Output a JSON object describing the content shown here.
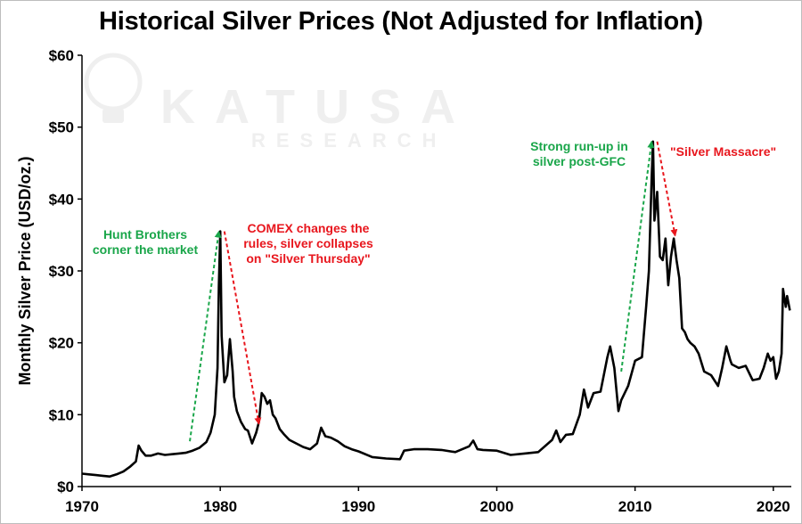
{
  "chart_data": {
    "type": "line",
    "title": "Historical Silver Prices (Not Adjusted for Inflation)",
    "ylabel": "Monthly Silver Price (USD/oz.)",
    "xlabel": "",
    "xlim": [
      1970,
      2021.3
    ],
    "ylim": [
      0,
      60
    ],
    "x_ticks": [
      1970,
      1980,
      1990,
      2000,
      2010,
      2020
    ],
    "x_tick_labels": [
      "1970",
      "1980",
      "1990",
      "2000",
      "2010",
      "2020"
    ],
    "y_ticks": [
      0,
      10,
      20,
      30,
      40,
      50,
      60
    ],
    "y_tick_labels": [
      "$0",
      "$10",
      "$20",
      "$30",
      "$40",
      "$50",
      "$60"
    ],
    "grid": false,
    "line_color": "#000000",
    "watermark": {
      "brand": "KATUSA",
      "sub": "RESEARCH"
    },
    "annotations": [
      {
        "lines": [
          "Hunt Brothers",
          "corner the market"
        ],
        "color": "#1aa64a"
      },
      {
        "lines": [
          "COMEX changes the",
          "rules, silver collapses",
          "on \"Silver Thursday\""
        ],
        "color": "#e8161d"
      },
      {
        "lines": [
          "Strong run-up in",
          "silver post-GFC"
        ],
        "color": "#1aa64a"
      },
      {
        "lines": [
          "\"Silver Massacre\""
        ],
        "color": "#e8161d"
      }
    ],
    "arrows": [
      {
        "from": [
          1977.8,
          6.3
        ],
        "to": [
          1979.9,
          35.5
        ],
        "color": "#1aa64a"
      },
      {
        "from": [
          1980.3,
          35.5
        ],
        "to": [
          1982.8,
          8.7
        ],
        "color": "#e8161d"
      },
      {
        "from": [
          2009.0,
          16.0
        ],
        "to": [
          2011.2,
          48.0
        ],
        "color": "#1aa64a"
      },
      {
        "from": [
          2011.6,
          48.0
        ],
        "to": [
          2012.9,
          34.9
        ],
        "color": "#e8161d"
      }
    ],
    "series": [
      {
        "x": [
          1970.0,
          1970.5,
          1971.0,
          1971.5,
          1972.0,
          1972.5,
          1973.0,
          1973.5,
          1973.9,
          1974.1,
          1974.3,
          1974.6,
          1975.0,
          1975.5,
          1976.0,
          1976.5,
          1977.0,
          1977.5,
          1978.0,
          1978.5,
          1979.0,
          1979.3,
          1979.6,
          1979.8,
          1979.9,
          1980.0,
          1980.1,
          1980.3,
          1980.5,
          1980.7,
          1980.9,
          1981.0,
          1981.2,
          1981.5,
          1981.8,
          1982.0,
          1982.3,
          1982.6,
          1982.8,
          1983.0,
          1983.2,
          1983.4,
          1983.6,
          1983.8,
          1984.0,
          1984.3,
          1984.6,
          1985.0,
          1985.5,
          1986.0,
          1986.5,
          1987.0,
          1987.3,
          1987.6,
          1988.0,
          1988.5,
          1989.0,
          1989.5,
          1990.0,
          1991.0,
          1992.0,
          1993.0,
          1993.3,
          1994.0,
          1995.0,
          1996.0,
          1997.0,
          1998.0,
          1998.3,
          1998.6,
          1999.0,
          2000.0,
          2001.0,
          2002.0,
          2003.0,
          2004.0,
          2004.3,
          2004.6,
          2005.0,
          2005.5,
          2006.0,
          2006.3,
          2006.6,
          2007.0,
          2007.5,
          2008.0,
          2008.2,
          2008.5,
          2008.8,
          2009.0,
          2009.5,
          2010.0,
          2010.5,
          2010.8,
          2011.0,
          2011.2,
          2011.3,
          2011.4,
          2011.6,
          2011.8,
          2012.0,
          2012.2,
          2012.4,
          2012.6,
          2012.8,
          2013.0,
          2013.2,
          2013.4,
          2013.6,
          2013.8,
          2014.0,
          2014.3,
          2014.6,
          2015.0,
          2015.5,
          2016.0,
          2016.3,
          2016.6,
          2016.9,
          2017.0,
          2017.5,
          2018.0,
          2018.5,
          2019.0,
          2019.3,
          2019.6,
          2019.8,
          2020.0,
          2020.2,
          2020.4,
          2020.6,
          2020.7,
          2020.9,
          2021.0,
          2021.2
        ],
        "y": [
          1.8,
          1.7,
          1.6,
          1.5,
          1.4,
          1.7,
          2.1,
          2.8,
          3.5,
          5.7,
          5.0,
          4.3,
          4.3,
          4.6,
          4.4,
          4.5,
          4.6,
          4.7,
          5.0,
          5.4,
          6.2,
          7.5,
          10.0,
          16.5,
          28.0,
          35.5,
          21.0,
          14.5,
          15.5,
          20.5,
          16.0,
          12.5,
          10.5,
          9.0,
          8.0,
          7.8,
          6.0,
          7.5,
          9.0,
          13.0,
          12.5,
          11.5,
          12.0,
          10.0,
          9.5,
          8.0,
          7.3,
          6.5,
          6.0,
          5.5,
          5.2,
          6.0,
          8.2,
          7.0,
          6.8,
          6.3,
          5.6,
          5.2,
          4.9,
          4.1,
          3.9,
          3.8,
          5.0,
          5.2,
          5.2,
          5.1,
          4.8,
          5.6,
          6.4,
          5.2,
          5.1,
          5.0,
          4.4,
          4.6,
          4.8,
          6.5,
          7.8,
          6.2,
          7.2,
          7.3,
          10.0,
          13.5,
          11.0,
          13.0,
          13.2,
          18.0,
          19.5,
          16.5,
          10.5,
          12.0,
          14.0,
          17.5,
          18.0,
          25.0,
          30.0,
          43.0,
          48.0,
          37.0,
          41.0,
          32.0,
          31.5,
          34.5,
          28.0,
          32.0,
          34.5,
          31.5,
          29.0,
          22.0,
          21.5,
          20.5,
          20.0,
          19.5,
          18.5,
          16.0,
          15.5,
          14.0,
          16.5,
          19.5,
          17.5,
          17.0,
          16.5,
          16.8,
          14.8,
          15.0,
          16.5,
          18.5,
          17.5,
          18.0,
          15.0,
          16.0,
          18.5,
          27.5,
          25.0,
          26.5,
          24.5
        ]
      }
    ]
  }
}
